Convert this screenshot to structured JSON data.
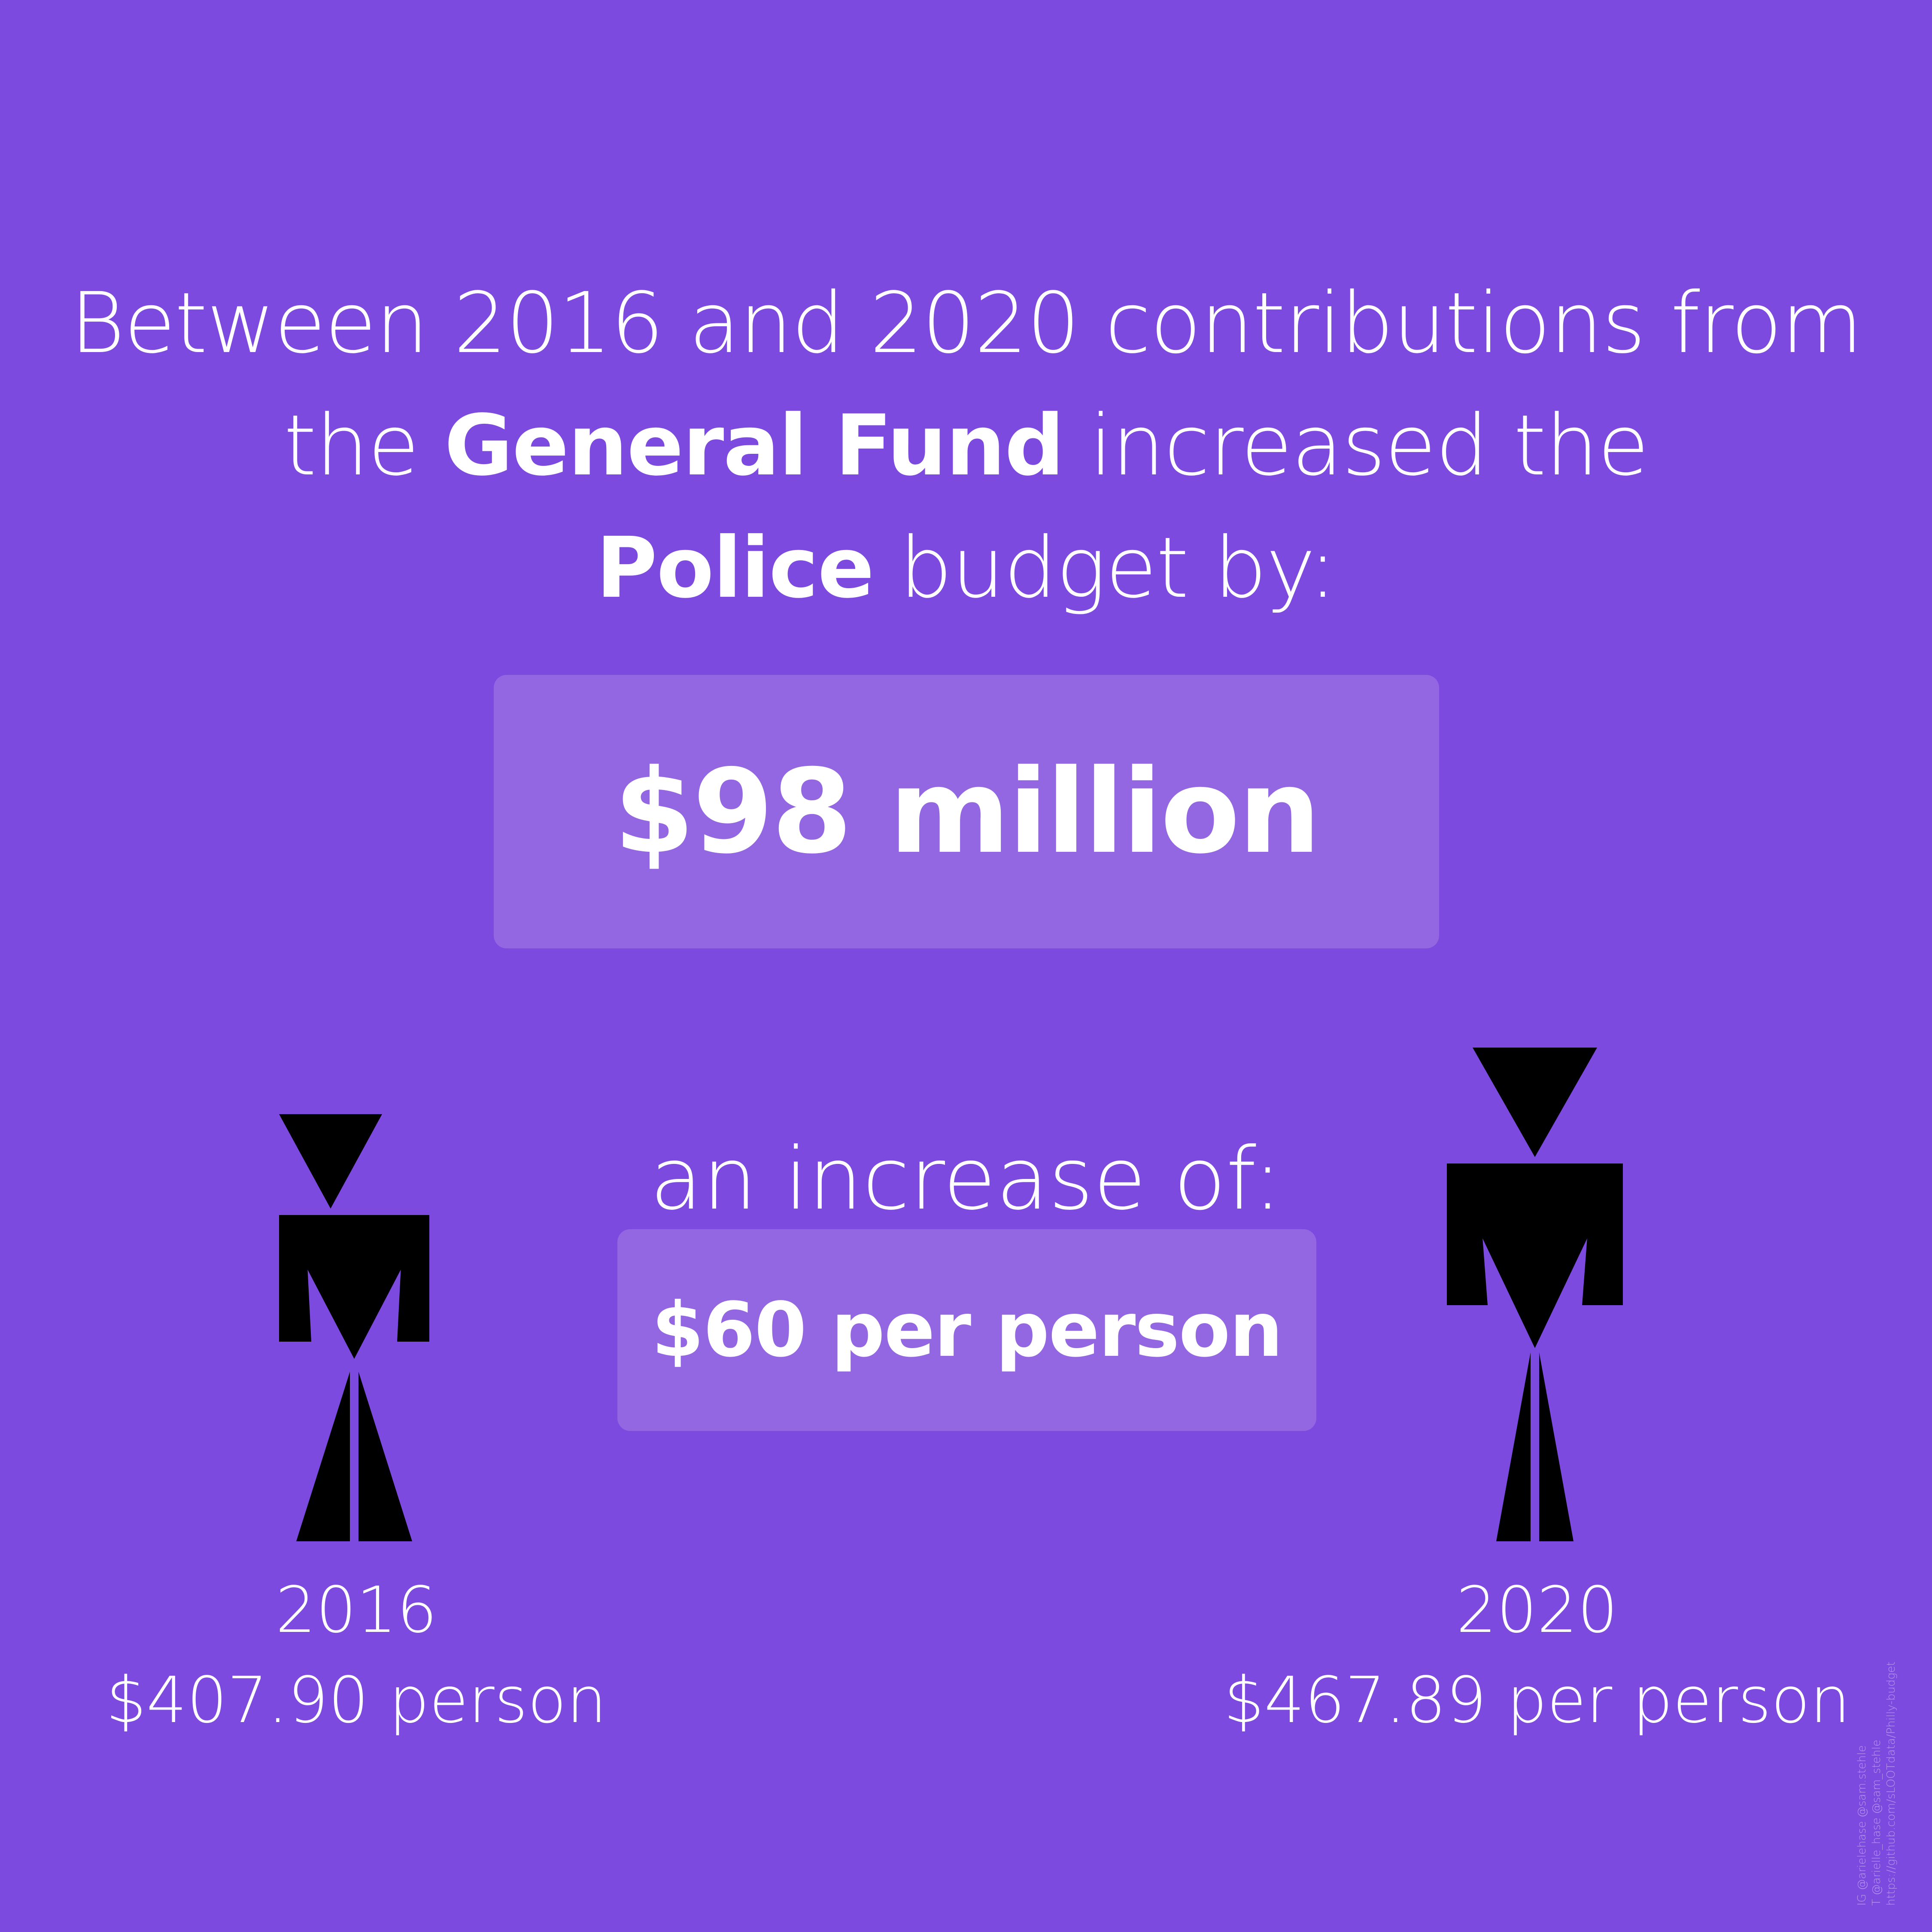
{
  "headline": {
    "part1": "Between 2016 and 2020 contributions from the ",
    "bold1": "General Fund",
    "part2": " increased the ",
    "bold2": "Police",
    "part3": " budget by:"
  },
  "total_increase": "$98 million",
  "increase_label": "an increase of:",
  "per_person_increase": "$60 per person",
  "figures": [
    {
      "year": "2016",
      "value": "$407.90 person",
      "icon": "person-icon"
    },
    {
      "year": "2020",
      "value": "$467.89 per person",
      "icon": "person-icon"
    }
  ],
  "credits": [
    "IG @arielehase @sam.stehle",
    "T @arielle_hase @sam_stehle",
    "https://github.com/sLOOTdata/Philly-budget"
  ],
  "colors": {
    "background": "#7d4adf",
    "highlight_box": "#9467e2",
    "figure": "#000000",
    "text": "#ffffff"
  }
}
